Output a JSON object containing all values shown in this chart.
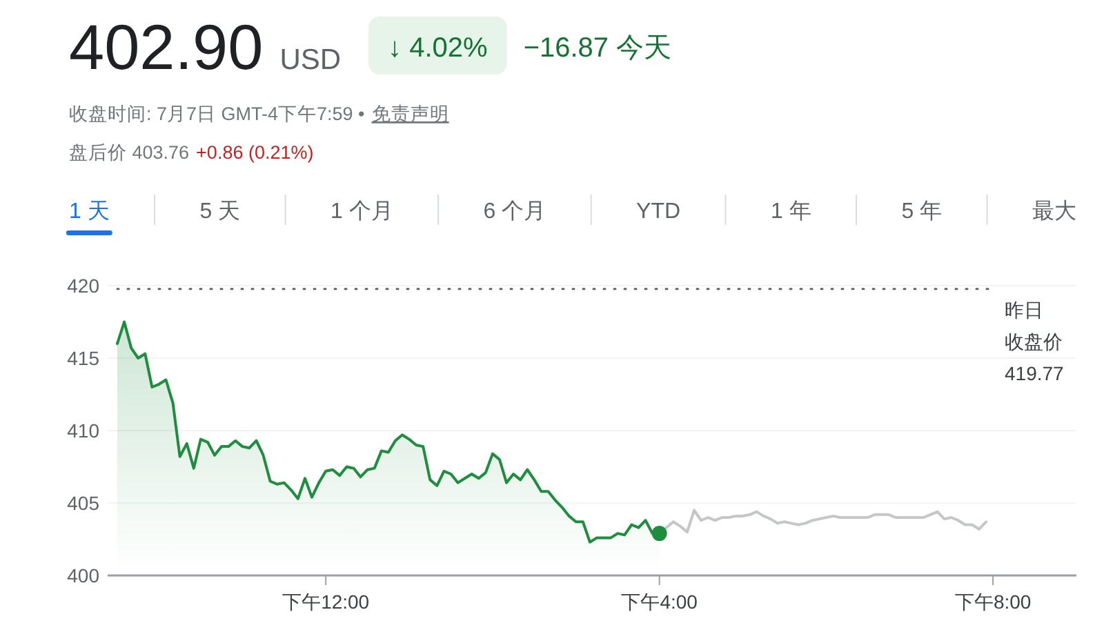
{
  "chart_data": {
    "type": "line",
    "title": "402.90",
    "subtitle": "收盘时间: 7月7日 GMT-4下午7:59 •",
    "annotations": [
      "USD",
      "↓ 4.02%",
      "−16.87 今天",
      "免责声明",
      "盘后价 403.76",
      "+0.86 (0.21%)",
      "1 天",
      "5 天",
      "1 个月",
      "6 个月",
      "YTD",
      "1 年",
      "5 年",
      "最大"
    ],
    "categories": [
      null,
      null,
      null,
      null,
      null,
      null,
      null,
      null,
      null,
      null,
      null,
      null,
      null,
      null,
      null,
      null,
      null,
      null,
      null,
      null,
      null,
      null,
      null,
      null,
      null,
      null,
      null,
      null,
      null,
      null,
      "下午12:00",
      null,
      null,
      null,
      null,
      null,
      null,
      null,
      null,
      null,
      null,
      null,
      null,
      null,
      null,
      null,
      null,
      null,
      null,
      null,
      null,
      null,
      null,
      null,
      null,
      null,
      null,
      null,
      null,
      null,
      null,
      null,
      null,
      null,
      null,
      null,
      null,
      null,
      null,
      null,
      null,
      null,
      null,
      null,
      null,
      null,
      null,
      null,
      "下午4:00",
      null,
      null,
      null,
      null,
      null,
      null,
      null,
      null,
      null,
      null,
      null,
      null,
      null,
      null,
      null,
      null,
      null,
      null,
      null,
      null,
      null,
      null,
      null,
      null,
      null,
      null,
      null,
      null,
      null,
      null,
      null,
      null,
      null,
      null,
      null,
      null,
      null,
      null,
      null,
      null,
      null,
      null,
      null,
      null,
      null,
      null,
      null,
      "下午8:00",
      null,
      null,
      null,
      null,
      null,
      null,
      null,
      null,
      null,
      null,
      null,
      null
    ],
    "ylim": [
      400,
      420
    ],
    "yticks": [
      400,
      405,
      410,
      415,
      420
    ],
    "grid": "y",
    "ref_lines": [
      {
        "axis": "y",
        "value": 419.77,
        "label": "昨日收盘价\n419.77",
        "color": "#5f6368",
        "line_style": "dotted"
      }
    ],
    "series": [
      {
        "type": "area",
        "color": "#1e8e3e",
        "values": [
          416.0,
          417.5,
          415.7,
          415.0,
          415.3,
          413.0,
          413.2,
          413.5,
          411.9,
          408.2,
          409.1,
          407.4,
          409.4,
          409.2,
          408.3,
          408.9,
          408.9,
          409.3,
          408.9,
          408.8,
          409.3,
          408.3,
          406.5,
          406.3,
          406.4,
          405.9,
          405.3,
          406.7,
          405.4,
          406.4,
          407.2,
          407.3,
          406.9,
          407.5,
          407.4,
          406.8,
          407.3,
          407.4,
          408.6,
          408.5,
          409.3,
          409.7,
          409.4,
          409.0,
          408.9,
          406.6,
          406.2,
          407.2,
          407.0,
          406.4,
          406.7,
          407.0,
          406.7,
          407.1,
          408.4,
          408.0,
          406.4,
          407.0,
          406.6,
          407.3,
          406.6,
          405.8,
          405.8,
          405.2,
          404.7,
          404.1,
          403.7,
          403.7,
          402.3,
          402.6,
          402.6,
          402.6,
          402.9,
          402.8,
          403.5,
          403.3,
          403.8,
          402.9,
          402.9,
          null,
          null,
          null,
          null,
          null,
          null,
          null,
          null,
          null,
          null,
          null,
          null,
          null,
          null,
          null,
          null,
          null,
          null,
          null,
          null,
          null,
          null,
          null,
          null,
          null,
          null,
          null,
          null,
          null,
          null,
          null,
          null,
          null,
          null,
          null,
          null,
          null,
          null,
          null,
          null,
          null,
          null,
          null,
          null,
          null,
          null,
          null,
          null,
          null,
          null,
          null,
          null,
          null,
          null,
          null,
          null,
          null,
          null,
          null,
          null
        ]
      },
      {
        "type": "line",
        "color": "#c4c7c5",
        "values": [
          null,
          null,
          null,
          null,
          null,
          null,
          null,
          null,
          null,
          null,
          null,
          null,
          null,
          null,
          null,
          null,
          null,
          null,
          null,
          null,
          null,
          null,
          null,
          null,
          null,
          null,
          null,
          null,
          null,
          null,
          null,
          null,
          null,
          null,
          null,
          null,
          null,
          null,
          null,
          null,
          null,
          null,
          null,
          null,
          null,
          null,
          null,
          null,
          null,
          null,
          null,
          null,
          null,
          null,
          null,
          null,
          null,
          null,
          null,
          null,
          null,
          null,
          null,
          null,
          null,
          null,
          null,
          null,
          null,
          null,
          null,
          null,
          null,
          null,
          null,
          null,
          null,
          null,
          402.9,
          403.3,
          403.7,
          403.4,
          403.0,
          404.5,
          403.8,
          404.0,
          403.8,
          404.0,
          404.0,
          404.1,
          404.1,
          404.2,
          404.4,
          404.1,
          403.9,
          403.6,
          403.7,
          403.6,
          403.5,
          403.6,
          403.8,
          403.9,
          404.0,
          404.1,
          404.0,
          404.0,
          404.0,
          404.0,
          404.0,
          404.2,
          404.2,
          404.2,
          404.0,
          404.0,
          404.0,
          404.0,
          404.0,
          404.2,
          404.4,
          403.9,
          404.0,
          403.8,
          403.5,
          403.5,
          403.2,
          403.7,
          null,
          null,
          null,
          null,
          null,
          null,
          null,
          null,
          null,
          null,
          null,
          null,
          null
        ]
      },
      {
        "type": "scatter",
        "color": "#1e8e3e",
        "marker": "circle",
        "values": [
          null,
          null,
          null,
          null,
          null,
          null,
          null,
          null,
          null,
          null,
          null,
          null,
          null,
          null,
          null,
          null,
          null,
          null,
          null,
          null,
          null,
          null,
          null,
          null,
          null,
          null,
          null,
          null,
          null,
          null,
          null,
          null,
          null,
          null,
          null,
          null,
          null,
          null,
          null,
          null,
          null,
          null,
          null,
          null,
          null,
          null,
          null,
          null,
          null,
          null,
          null,
          null,
          null,
          null,
          null,
          null,
          null,
          null,
          null,
          null,
          null,
          null,
          null,
          null,
          null,
          null,
          null,
          null,
          null,
          null,
          null,
          null,
          null,
          null,
          null,
          null,
          null,
          null,
          402.9,
          null,
          null,
          null,
          null,
          null,
          null,
          null,
          null,
          null,
          null,
          null,
          null,
          null,
          null,
          null,
          null,
          null,
          null,
          null,
          null,
          null,
          null,
          null,
          null,
          null,
          null,
          null,
          null,
          null,
          null,
          null,
          null,
          null,
          null,
          null,
          null,
          null,
          null,
          null,
          null,
          null,
          null,
          null,
          null,
          null,
          null,
          null,
          null,
          null,
          null,
          null,
          null,
          null,
          null,
          null,
          null,
          null,
          null,
          null,
          null
        ]
      }
    ]
  }
}
